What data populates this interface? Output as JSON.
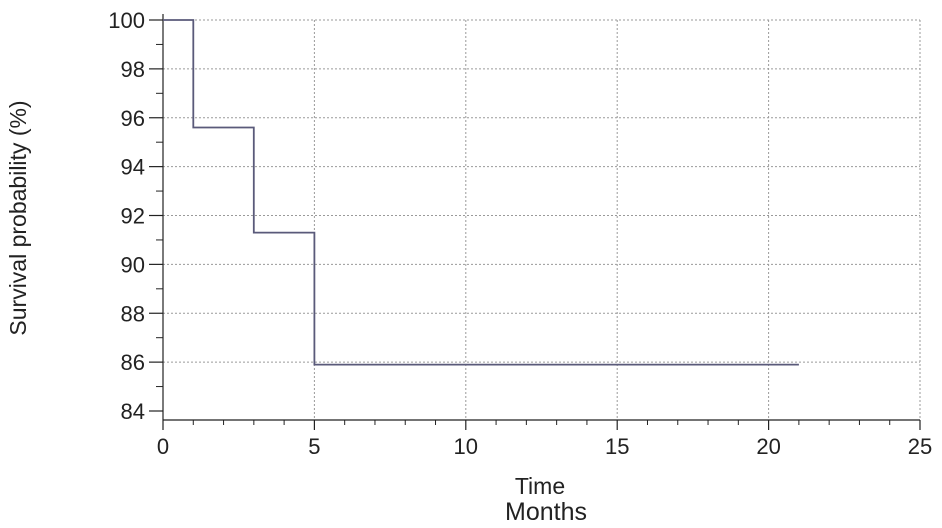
{
  "chart_data": {
    "type": "line",
    "step": true,
    "xlabel": "Time",
    "subtitle": "Months",
    "ylabel": "Survival probability (%)",
    "xlim": [
      0,
      25
    ],
    "ylim": [
      84,
      100
    ],
    "xticks": [
      0,
      5,
      10,
      15,
      20,
      25
    ],
    "yticks": [
      84,
      86,
      88,
      90,
      92,
      94,
      96,
      98,
      100
    ],
    "grid": true,
    "series": [
      {
        "x": [
          0,
          1,
          1,
          3,
          3,
          5,
          5,
          21
        ],
        "y": [
          100,
          100,
          95.6,
          95.6,
          91.3,
          91.3,
          85.9,
          85.9
        ],
        "color": "#5a5a7a"
      }
    ]
  }
}
